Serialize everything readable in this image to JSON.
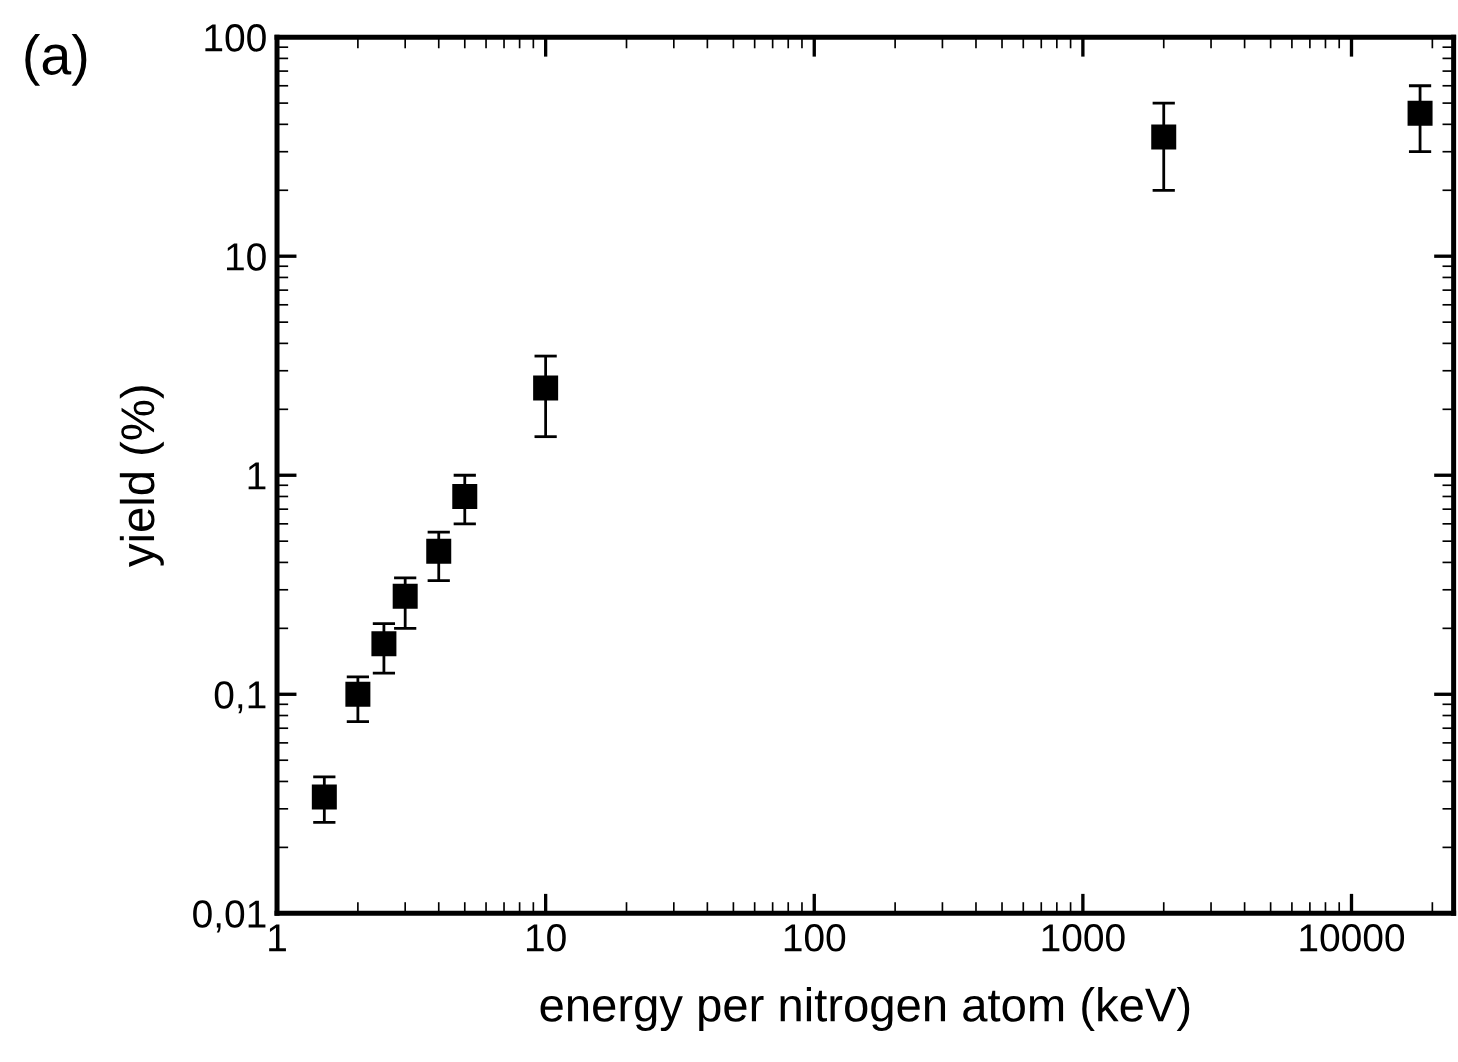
{
  "chart_data": {
    "type": "scatter",
    "xlabel": "energy per nitrogen atom (keV)",
    "ylabel": "yield (%)",
    "annotations": [
      "(a)"
    ],
    "log": "xy",
    "xlim": [
      1,
      24000
    ],
    "ylim": [
      0.01,
      100
    ],
    "xticks": [
      1,
      10,
      100,
      1000,
      10000
    ],
    "yticks": [
      {
        "value": 0.01,
        "label": "0,01"
      },
      {
        "value": 0.1,
        "label": "0,1"
      },
      1,
      10,
      100
    ],
    "grid": false,
    "marker": "square",
    "series": [
      {
        "color": "#000000",
        "x": [
          1.5,
          2,
          2.5,
          3,
          4,
          5,
          10,
          2000,
          18000
        ],
        "values": [
          0.034,
          0.1,
          0.17,
          0.28,
          0.45,
          0.8,
          2.5,
          35,
          45
        ],
        "errors": [
          [
            0.026,
            0.042
          ],
          [
            0.075,
            0.12
          ],
          [
            0.125,
            0.21
          ],
          [
            0.2,
            0.34
          ],
          [
            0.33,
            0.55
          ],
          [
            0.6,
            1.0
          ],
          [
            1.5,
            3.5
          ],
          [
            20,
            50
          ],
          [
            30,
            60
          ]
        ]
      }
    ]
  }
}
